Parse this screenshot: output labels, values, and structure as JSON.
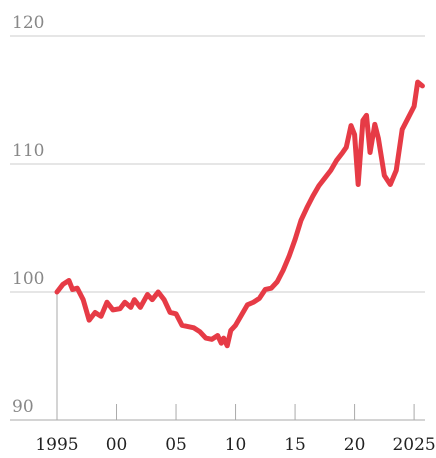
{
  "chart_data": {
    "type": "line",
    "x": [
      1995.0,
      1995.5,
      1996.0,
      1996.3,
      1996.7,
      1997.2,
      1997.7,
      1998.2,
      1998.7,
      1999.2,
      1999.7,
      2000.3,
      2000.7,
      2001.2,
      2001.5,
      2002.0,
      2002.6,
      2003.0,
      2003.5,
      2004.0,
      2004.5,
      2005.0,
      2005.5,
      2006.0,
      2006.5,
      2007.0,
      2007.5,
      2008.0,
      2008.5,
      2008.8,
      2009.0,
      2009.3,
      2009.6,
      2010.0,
      2010.5,
      2011.0,
      2011.5,
      2012.0,
      2012.5,
      2013.0,
      2013.5,
      2014.0,
      2014.5,
      2015.0,
      2015.5,
      2016.0,
      2016.5,
      2017.0,
      2017.5,
      2018.0,
      2018.5,
      2019.0,
      2019.3,
      2019.7,
      2020.0,
      2020.3,
      2020.7,
      2021.0,
      2021.3,
      2021.7,
      2022.0,
      2022.5,
      2023.0,
      2023.5,
      2024.0,
      2024.5,
      2025.0,
      2025.3,
      2025.7
    ],
    "series": [
      {
        "color": "#e63b46",
        "values": [
          100.0,
          100.6,
          100.9,
          100.2,
          100.3,
          99.4,
          97.8,
          98.4,
          98.1,
          99.2,
          98.6,
          98.7,
          99.2,
          98.8,
          99.4,
          98.8,
          99.8,
          99.4,
          100.0,
          99.4,
          98.4,
          98.3,
          97.4,
          97.3,
          97.2,
          96.9,
          96.4,
          96.3,
          96.6,
          96.0,
          96.4,
          95.8,
          97.0,
          97.4,
          98.2,
          99.0,
          99.2,
          99.5,
          100.2,
          100.3,
          100.8,
          101.7,
          102.8,
          104.1,
          105.6,
          106.6,
          107.5,
          108.3,
          108.9,
          109.5,
          110.3,
          110.9,
          111.3,
          113.0,
          112.3,
          108.4,
          113.4,
          113.8,
          110.9,
          113.1,
          112.0,
          109.1,
          108.4,
          109.5,
          112.7,
          113.6,
          114.5,
          116.4,
          116.1
        ]
      }
    ],
    "xlim": [
      1995,
      2026
    ],
    "xticks": [
      1995,
      {
        "value": 2000,
        "label": "00"
      },
      {
        "value": 2005,
        "label": "05"
      },
      {
        "value": 2010,
        "label": "10"
      },
      {
        "value": 2015,
        "label": "15"
      },
      {
        "value": 2020,
        "label": "20"
      },
      2025
    ],
    "ylim": [
      90,
      120
    ],
    "yticks": [
      90,
      100,
      110,
      120
    ],
    "grid": true
  }
}
